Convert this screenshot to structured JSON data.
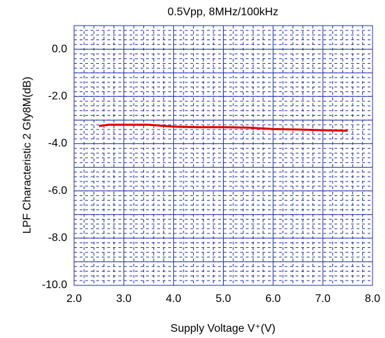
{
  "chart_data": {
    "type": "line",
    "title": "0.5Vpp, 8MHz/100kHz",
    "x_label": "Supply Voltage  V⁺(V)",
    "y_label": "LPF Characteristic 2  Gfy8M(dB)",
    "series": [
      {
        "name": "Gfy8M",
        "color": "#e00000",
        "x": [
          2.5,
          2.7,
          3.0,
          3.5,
          4.0,
          4.5,
          5.0,
          5.5,
          6.0,
          6.5,
          7.0,
          7.5
        ],
        "values": [
          -3.25,
          -3.2,
          -3.2,
          -3.2,
          -3.28,
          -3.3,
          -3.3,
          -3.32,
          -3.38,
          -3.4,
          -3.43,
          -3.45
        ]
      }
    ],
    "xlim": [
      2.0,
      8.0
    ],
    "xticks": [
      {
        "value": 2,
        "label": "2.0"
      },
      {
        "value": 3,
        "label": "3.0"
      },
      {
        "value": 4,
        "label": "4.0"
      },
      {
        "value": 5,
        "label": "5.0"
      },
      {
        "value": 6,
        "label": "6.0"
      },
      {
        "value": 7,
        "label": "7.0"
      },
      {
        "value": 8,
        "label": "8.0"
      }
    ],
    "ylim": [
      -10.0,
      1.0
    ],
    "yticks": [
      {
        "value": -10,
        "label": "-10.0"
      },
      {
        "value": -8,
        "label": "-8.0"
      },
      {
        "value": -6,
        "label": "-6.0"
      },
      {
        "value": -4,
        "label": "-4.0"
      },
      {
        "value": -2,
        "label": "-2.0"
      },
      {
        "value": 0,
        "label": "0.0"
      }
    ],
    "grid": true
  }
}
